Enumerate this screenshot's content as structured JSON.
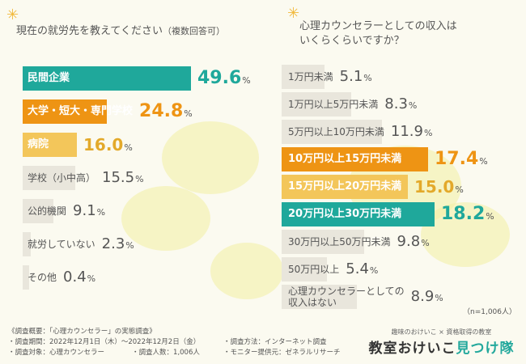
{
  "left_chart": {
    "title": "現在の就労先を教えてください",
    "title_note": "（複数回答可）",
    "rows": [
      {
        "label": "民間企業",
        "value": "49.6",
        "unit": "%",
        "highlight": "teal"
      },
      {
        "label": "大学・短大・専門学校",
        "value": "24.8",
        "unit": "%",
        "highlight": "orange"
      },
      {
        "label": "病院",
        "value": "16.0",
        "unit": "%",
        "highlight": "yellow"
      },
      {
        "label": "学校（小中高）",
        "value": "15.5",
        "unit": "%",
        "highlight": "none"
      },
      {
        "label": "公的機関",
        "value": "9.1",
        "unit": "%",
        "highlight": "none"
      },
      {
        "label": "就労していない",
        "value": "2.3",
        "unit": "%",
        "highlight": "none"
      },
      {
        "label": "その他",
        "value": "0.4",
        "unit": "%",
        "highlight": "none"
      }
    ]
  },
  "right_chart": {
    "title_line1": "心理カウンセラーとしての収入は",
    "title_line2": "いくらくらいですか？",
    "rows": [
      {
        "label": "1万円未満",
        "value": "5.1",
        "unit": "%",
        "highlight": "none"
      },
      {
        "label": "1万円以上5万円未満",
        "value": "8.3",
        "unit": "%",
        "highlight": "none"
      },
      {
        "label": "5万円以上10万円未満",
        "value": "11.9",
        "unit": "%",
        "highlight": "none"
      },
      {
        "label": "10万円以上15万円未満",
        "value": "17.4",
        "unit": "%",
        "highlight": "orange"
      },
      {
        "label": "15万円以上20万円未満",
        "value": "15.0",
        "unit": "%",
        "highlight": "yellow"
      },
      {
        "label": "20万円以上30万円未満",
        "value": "18.2",
        "unit": "%",
        "highlight": "teal"
      },
      {
        "label": "30万円以上50万円未満",
        "value": "9.8",
        "unit": "%",
        "highlight": "none"
      },
      {
        "label": "50万円以上",
        "value": "5.4",
        "unit": "%",
        "highlight": "none"
      },
      {
        "label_line1": "心理カウンセラーとしての",
        "label_line2": "収入はない",
        "value": "8.9",
        "unit": "%",
        "highlight": "none"
      }
    ],
    "note": "（n=1,006人）"
  },
  "chart_data": [
    {
      "type": "bar",
      "orientation": "horizontal",
      "title": "現在の就労先を教えてください（複数回答可）",
      "categories": [
        "民間企業",
        "大学・短大・専門学校",
        "病院",
        "学校（小中高）",
        "公的機関",
        "就労していない",
        "その他"
      ],
      "values": [
        49.6,
        24.8,
        16.0,
        15.5,
        9.1,
        2.3,
        0.4
      ],
      "unit": "%"
    },
    {
      "type": "bar",
      "orientation": "horizontal",
      "title": "心理カウンセラーとしての収入はいくらくらいですか？",
      "categories": [
        "1万円未満",
        "1万円以上5万円未満",
        "5万円以上10万円未満",
        "10万円以上15万円未満",
        "15万円以上20万円未満",
        "20万円以上30万円未満",
        "30万円以上50万円未満",
        "50万円以上",
        "心理カウンセラーとしての収入はない"
      ],
      "values": [
        5.1,
        8.3,
        11.9,
        17.4,
        15.0,
        18.2,
        9.8,
        5.4,
        8.9
      ],
      "unit": "%",
      "note": "n=1,006人"
    }
  ],
  "footer": {
    "header": "《調査概要：「心理カウンセラー」の実態調査》",
    "period": "・調査期間：2022年12月1日（木）〜2022年12月2日（金）",
    "method": "・調査方法：インターネット調査",
    "target": "・調査対象：心理カウンセラー",
    "count": "・調査人数：1,006人",
    "monitor": "・モニター提供元：ゼネラルリサーチ"
  },
  "logo": {
    "sub": "趣味のおけいこ × 資格取得の教室",
    "main_a": "教室おけいこ",
    "main_b": "見つけ隊"
  },
  "colors": {
    "teal": "#1fa89b",
    "orange": "#ee9414",
    "yellow": "#f3c65a",
    "none": "#e9e6dc",
    "value_dark": "#555555"
  }
}
